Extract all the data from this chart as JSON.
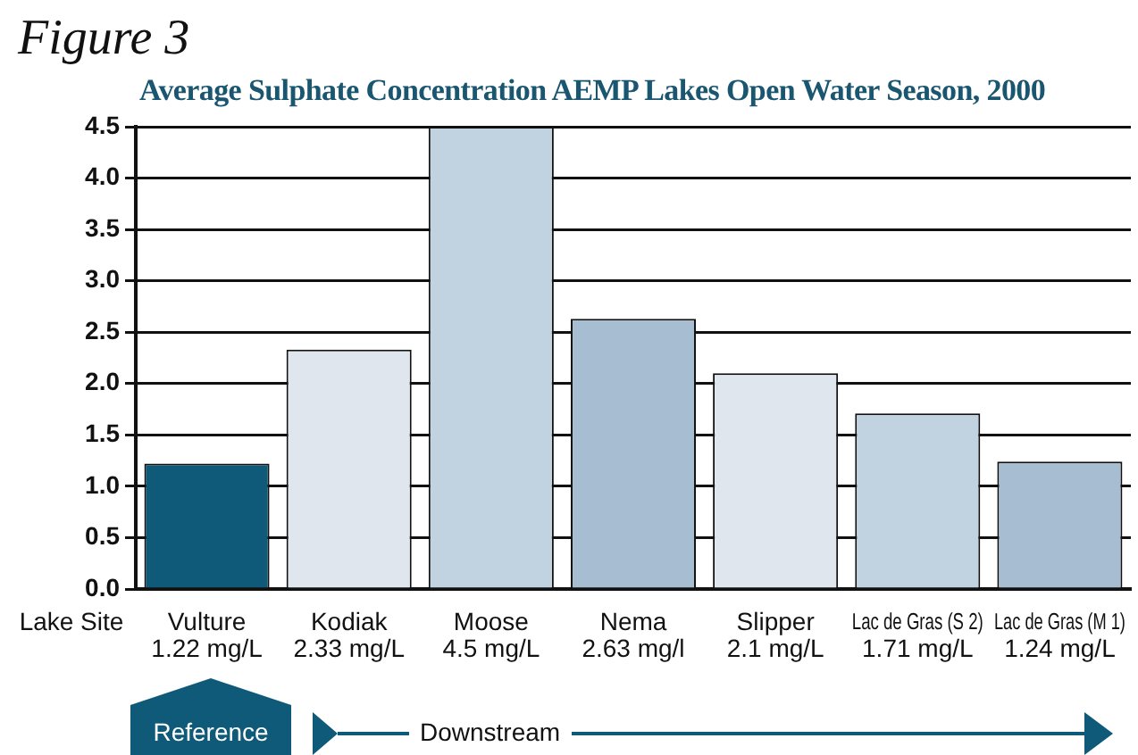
{
  "chart_data": {
    "type": "bar",
    "title": "Average Sulphate Concentration AEMP Lakes Open Water Season, 2000",
    "xlabel": "Lake Site",
    "categories": [
      "Vulture",
      "Kodiak",
      "Moose",
      "Nema",
      "Slipper",
      "Lac de Gras (S 2)",
      "Lac de Gras (M 1)"
    ],
    "values": [
      1.22,
      2.33,
      4.5,
      2.63,
      2.1,
      1.71,
      1.24
    ],
    "value_labels": [
      "1.22 mg/L",
      "2.33 mg/L",
      "4.5 mg/L",
      "2.63 mg/l",
      "2.1 mg/L",
      "1.71 mg/L",
      "1.24 mg/L"
    ],
    "colors": [
      "#0f5a78",
      "#dfe6ee",
      "#c1d2e0",
      "#a7bdd1",
      "#dfe6ee",
      "#c1d2e0",
      "#a7bdd1"
    ],
    "ylim": [
      0,
      4.5
    ],
    "yticks": [
      {
        "value": 0,
        "label": "0.0"
      },
      0.5,
      {
        "value": 1,
        "label": "1.0"
      },
      1.5,
      {
        "value": 2,
        "label": "2.0"
      },
      2.5,
      {
        "value": 3,
        "label": "3.0"
      },
      3.5,
      {
        "value": 4,
        "label": "4.0"
      },
      4.5
    ],
    "grid": "y",
    "legend": false,
    "annotations": [
      "Figure 3",
      "Reference",
      "Downstream"
    ]
  }
}
